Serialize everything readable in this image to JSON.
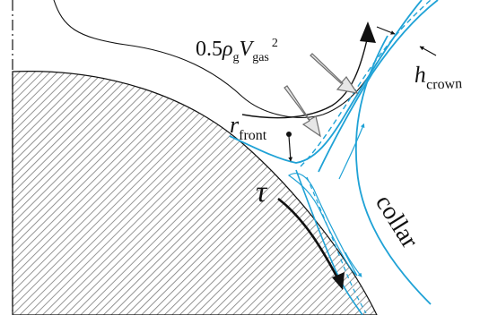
{
  "colors": {
    "flow": "#1fa2d6",
    "ink": "#111111",
    "hatch": "#7a7a7a",
    "arrow_fill": "#e6e6e6",
    "arrow_stroke": "#6e6e6e"
  },
  "labels": {
    "pressure": {
      "coef": "0.5",
      "rho": "ρ",
      "rho_sub": "g",
      "v": "V",
      "v_sub": "gas",
      "exp": "2"
    },
    "h_crown": {
      "main": "h",
      "sub": "crown"
    },
    "r_front": {
      "main": "r",
      "sub": "front"
    },
    "tau": "τ",
    "collar": "collar"
  }
}
